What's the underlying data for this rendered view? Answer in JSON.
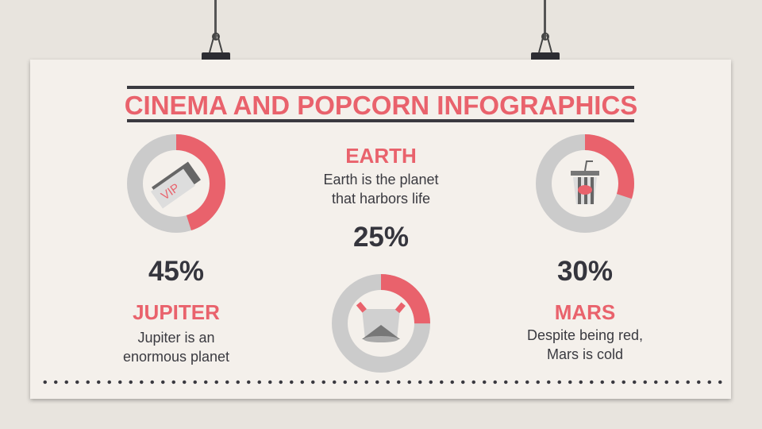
{
  "title": "CINEMA AND POPCORN INFOGRAPHICS",
  "colors": {
    "accent": "#e9626c",
    "ring": "#cbcbcb",
    "dark": "#35353d"
  },
  "items": [
    {
      "name": "JUPITER",
      "desc1": "Jupiter is an",
      "desc2": "enormous planet",
      "percent": "45%",
      "value": 45,
      "icon": "vip-ticket-icon"
    },
    {
      "name": "EARTH",
      "desc1": "Earth is the planet",
      "desc2": "that harbors life",
      "percent": "25%",
      "value": 25,
      "icon": "spotlights-icon"
    },
    {
      "name": "MARS",
      "desc1": "Despite being red,",
      "desc2": "Mars is cold",
      "percent": "30%",
      "value": 30,
      "icon": "drink-cup-icon"
    }
  ],
  "vip_text": "VIP"
}
